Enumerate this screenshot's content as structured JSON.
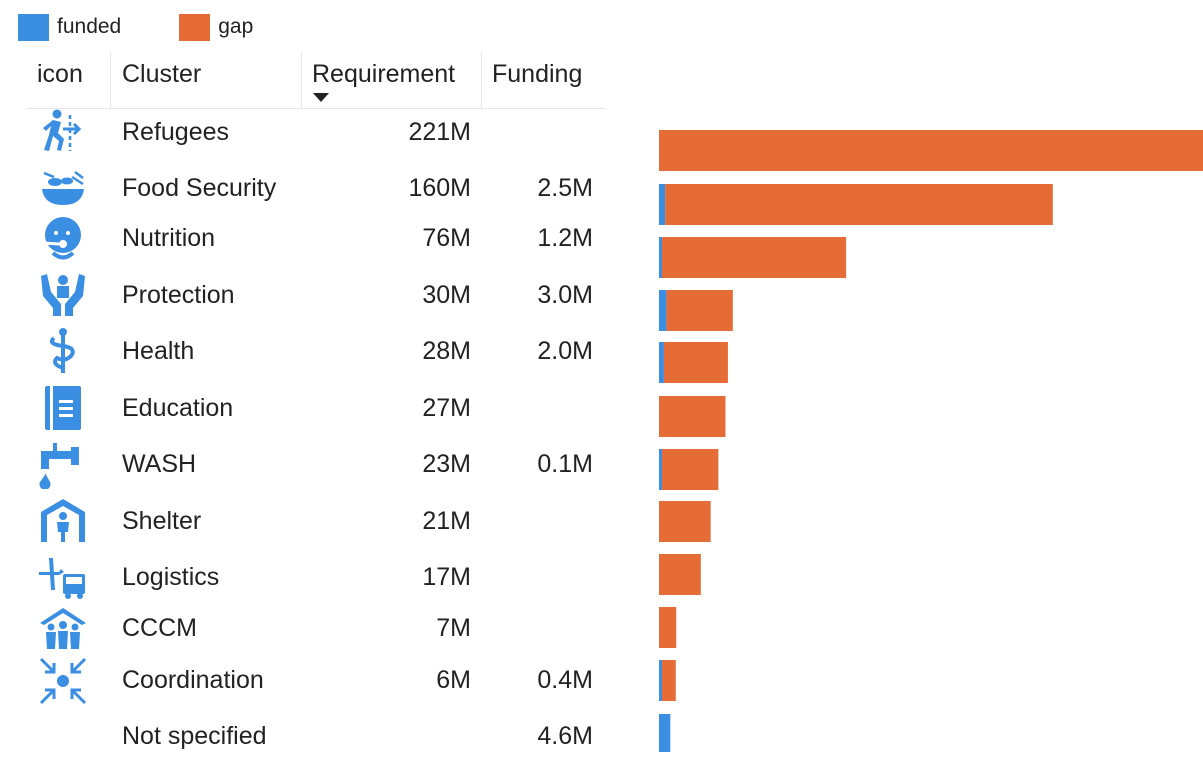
{
  "colors": {
    "funded": "#3b8fe3",
    "gap": "#e56c37",
    "icon": "#3b8fe3"
  },
  "legend": [
    {
      "label": "funded",
      "color": "#3b8fe3"
    },
    {
      "label": "gap",
      "color": "#e56c37"
    }
  ],
  "table": {
    "headers": {
      "icon": "icon",
      "cluster": "Cluster",
      "requirement": "Requirement",
      "funding": "Funding"
    },
    "sorted_column": "Requirement",
    "sort_direction": "descending",
    "rows": [
      {
        "icon": "refugees-icon",
        "cluster": "Refugees",
        "requirement": "221M",
        "funding": ""
      },
      {
        "icon": "food-security-icon",
        "cluster": "Food Security",
        "requirement": "160M",
        "funding": "2.5M"
      },
      {
        "icon": "nutrition-icon",
        "cluster": "Nutrition",
        "requirement": "76M",
        "funding": "1.2M"
      },
      {
        "icon": "protection-icon",
        "cluster": "Protection",
        "requirement": "30M",
        "funding": "3.0M"
      },
      {
        "icon": "health-icon",
        "cluster": "Health",
        "requirement": "28M",
        "funding": "2.0M"
      },
      {
        "icon": "education-icon",
        "cluster": "Education",
        "requirement": "27M",
        "funding": ""
      },
      {
        "icon": "wash-icon",
        "cluster": "WASH",
        "requirement": "23M",
        "funding": "0.1M"
      },
      {
        "icon": "shelter-icon",
        "cluster": "Shelter",
        "requirement": "21M",
        "funding": ""
      },
      {
        "icon": "logistics-icon",
        "cluster": "Logistics",
        "requirement": "17M",
        "funding": ""
      },
      {
        "icon": "cccm-icon",
        "cluster": "CCCM",
        "requirement": "7M",
        "funding": ""
      },
      {
        "icon": "coordination-icon",
        "cluster": "Coordination",
        "requirement": "6M",
        "funding": "0.4M"
      },
      {
        "icon": "",
        "cluster": "Not specified",
        "requirement": "",
        "funding": "4.6M"
      }
    ]
  },
  "chart_data": {
    "type": "bar",
    "orientation": "horizontal",
    "stacked": true,
    "categories": [
      "Refugees",
      "Food Security",
      "Nutrition",
      "Protection",
      "Health",
      "Education",
      "WASH",
      "Shelter",
      "Logistics",
      "CCCM",
      "Coordination",
      "Not specified"
    ],
    "series": [
      {
        "name": "funded",
        "values": [
          0,
          2.5,
          1.2,
          3.0,
          2.0,
          0,
          0.1,
          0,
          0,
          0,
          0.4,
          4.6
        ]
      },
      {
        "name": "gap",
        "values": [
          221,
          157.5,
          74.8,
          27.0,
          26.0,
          27,
          22.9,
          21,
          17,
          7,
          5.6,
          0
        ]
      }
    ],
    "unit": "M",
    "xlim": [
      0,
      221
    ],
    "grid": false,
    "legend_position": "top-left"
  }
}
